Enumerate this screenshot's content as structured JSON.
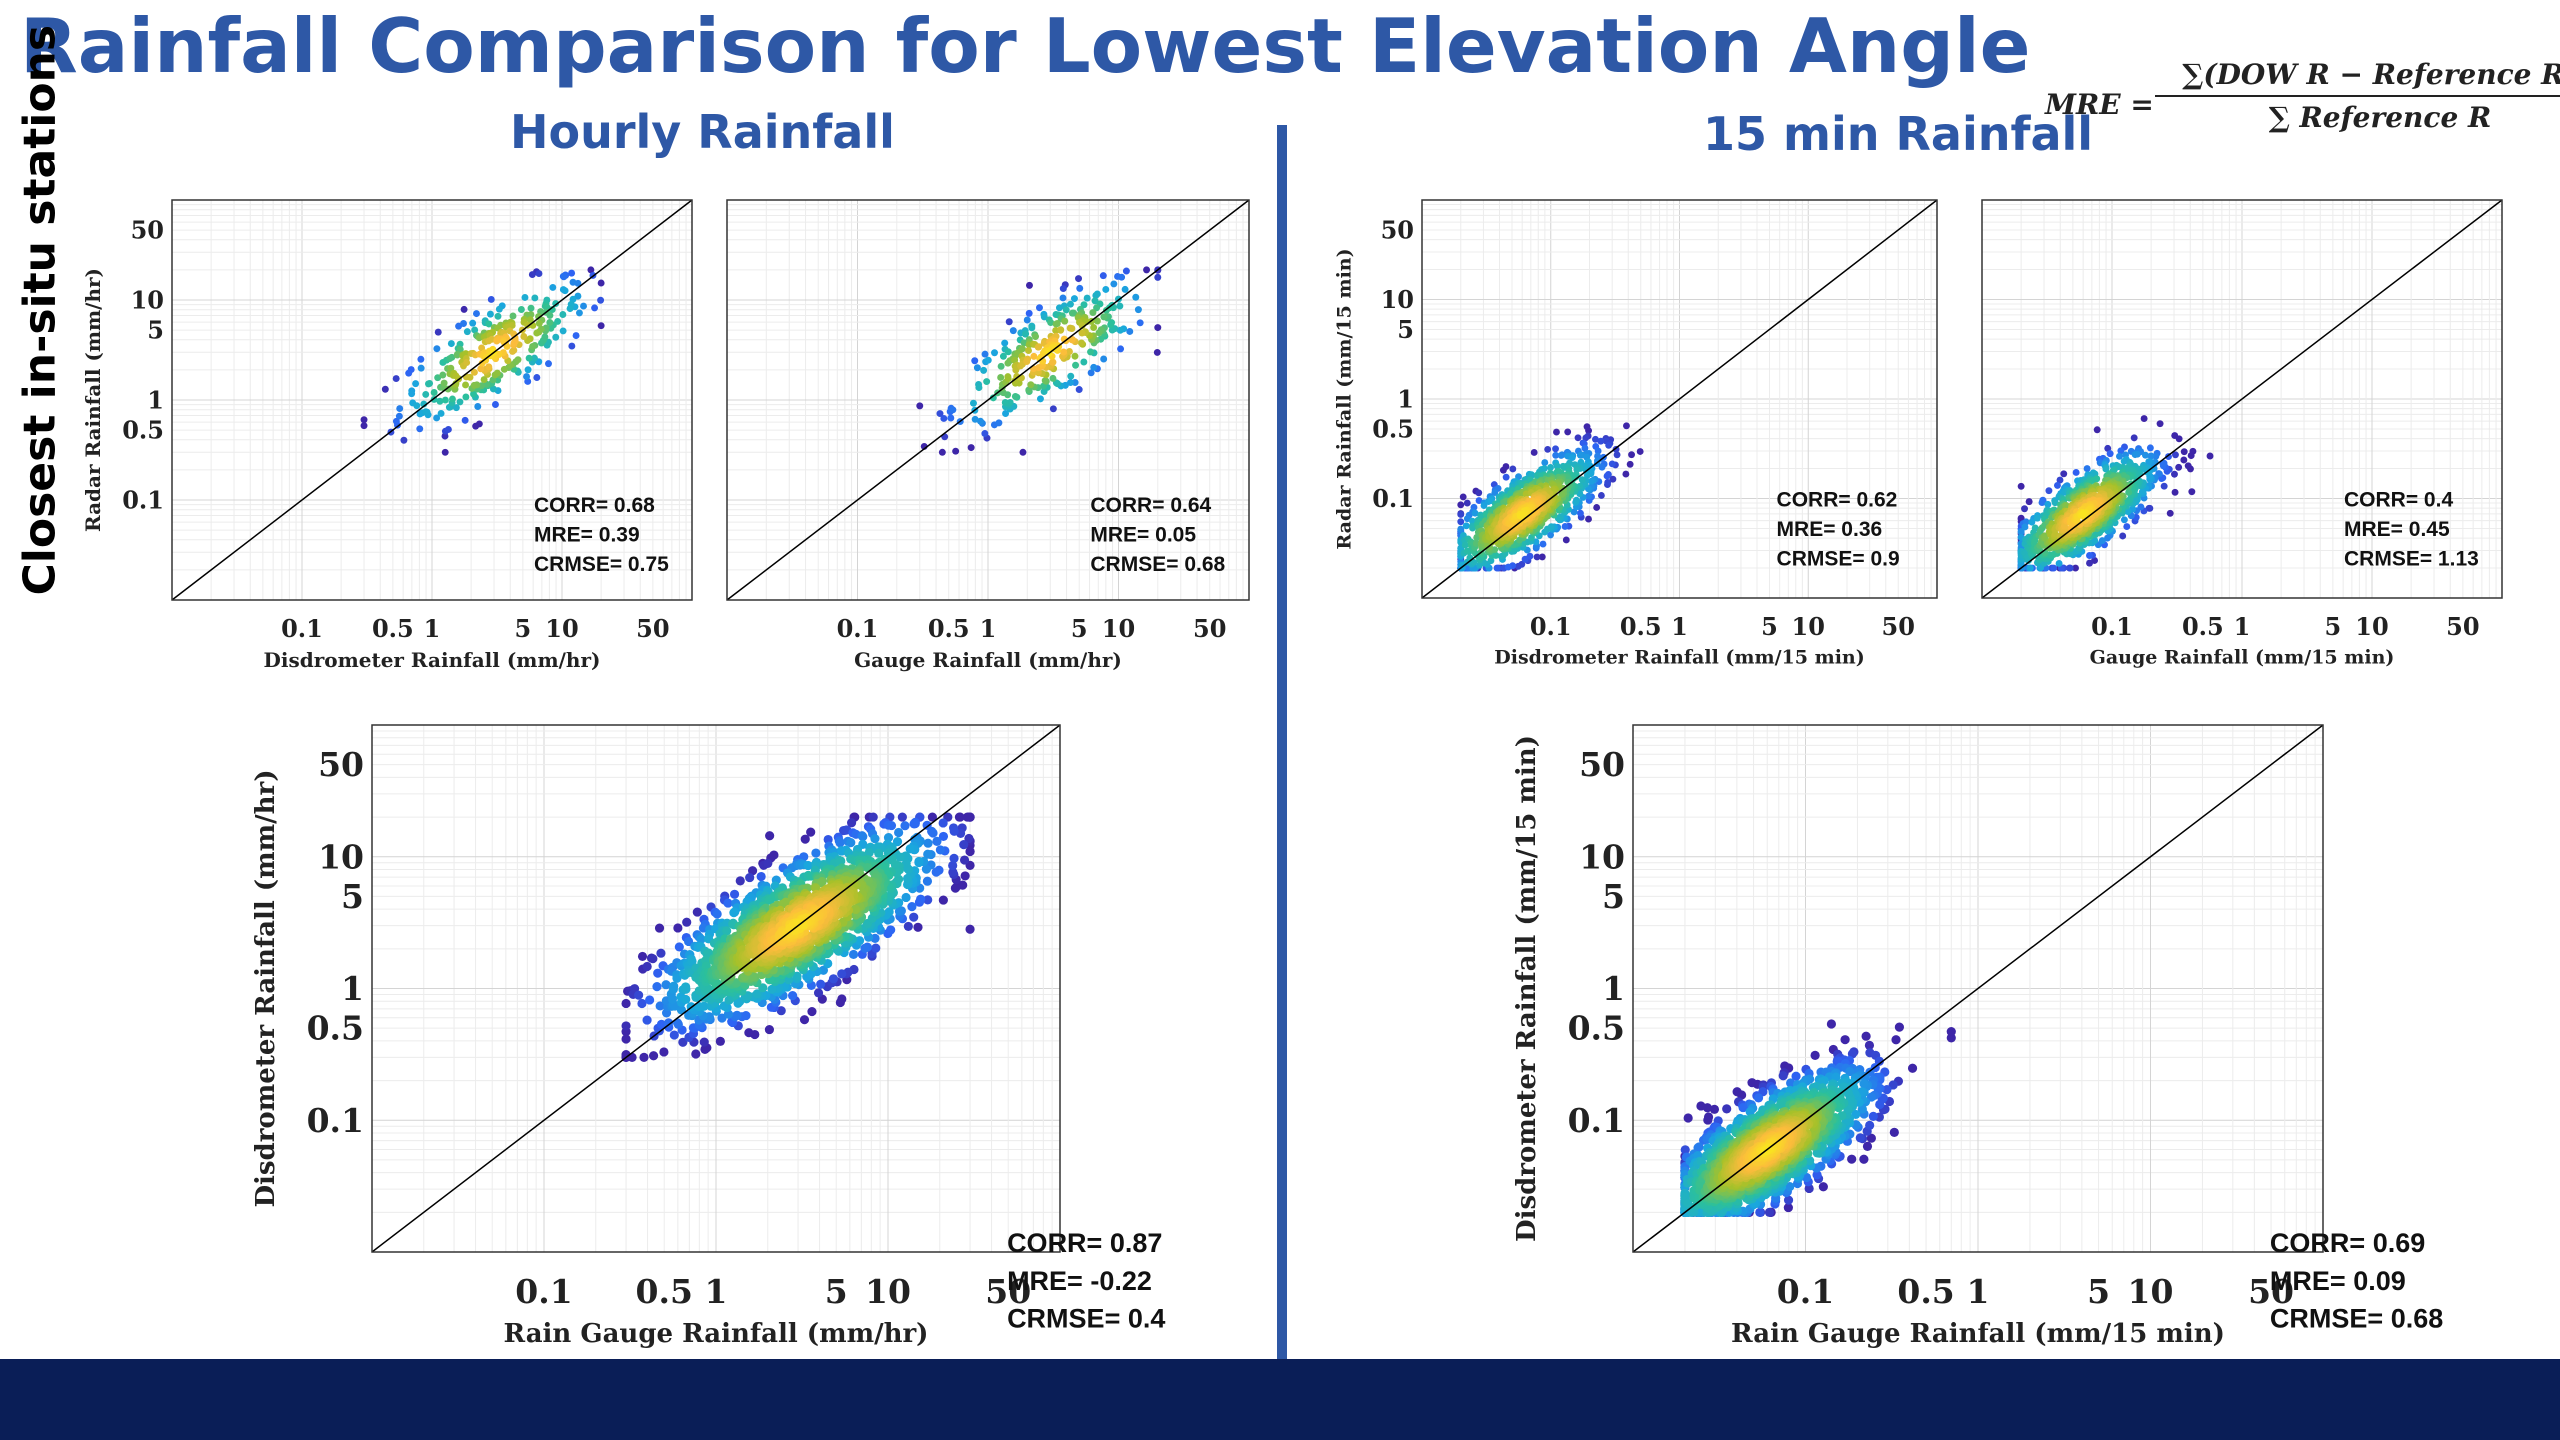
{
  "page": {
    "title": "Rainfall Comparison for Lowest Elevation Angle",
    "side_label": "Closest in-situ stations",
    "hourly_title": "Hourly Rainfall",
    "min15_title": "15 min Rainfall",
    "formula": {
      "lhs": "MRE =",
      "numerator": "∑(DOW R − Reference R)",
      "denominator": "∑ Reference R"
    }
  },
  "colors": {
    "title": "#2e58a6",
    "divider": "#2e58a6",
    "bottom_bar": "#0a1e57",
    "one_to_one_line": "#000000",
    "colormap": [
      "#3e26a8",
      "#2e63f4",
      "#1aa8dd",
      "#2cc09b",
      "#a6c12a",
      "#fbbc3c",
      "#f9e51f"
    ]
  },
  "chart_data": [
    {
      "type": "scatter",
      "id": "hourly-radar-vs-disdrometer",
      "xlabel": "Disdrometer Rainfall (mm/hr)",
      "ylabel": "Radar Rainfall (mm/hr)",
      "xscale": "log",
      "yscale": "log",
      "xlim": [
        0.01,
        100
      ],
      "ylim": [
        0.01,
        100
      ],
      "xticks": [
        "0.1",
        "0.5",
        "1",
        "5",
        "10",
        "50"
      ],
      "yticks": [
        "0.1",
        "0.5",
        "1",
        "5",
        "10",
        "50"
      ],
      "grid": true,
      "one_to_one_line": true,
      "color_by": "point density",
      "points_approx": {
        "count": 300,
        "x_median": 3,
        "y_median": 3,
        "x_range": [
          0.3,
          20
        ],
        "y_range": [
          0.3,
          20
        ]
      },
      "stats": {
        "corr": "CORR= 0.68",
        "mre": "MRE= 0.39",
        "crmse": "CRMSE= 0.75"
      }
    },
    {
      "type": "scatter",
      "id": "hourly-radar-vs-gauge",
      "xlabel": "Gauge Rainfall (mm/hr)",
      "ylabel": "",
      "xscale": "log",
      "yscale": "log",
      "xlim": [
        0.01,
        100
      ],
      "ylim": [
        0.01,
        100
      ],
      "xticks": [
        "0.1",
        "0.5",
        "1",
        "5",
        "10",
        "50"
      ],
      "yticks": [],
      "grid": true,
      "one_to_one_line": true,
      "color_by": "point density",
      "points_approx": {
        "count": 300,
        "x_median": 3,
        "y_median": 3,
        "x_range": [
          0.3,
          20
        ],
        "y_range": [
          0.3,
          20
        ]
      },
      "stats": {
        "corr": "CORR= 0.64",
        "mre": "MRE= 0.05",
        "crmse": "CRMSE= 0.68"
      }
    },
    {
      "type": "scatter",
      "id": "min15-radar-vs-disdrometer",
      "xlabel": "Disdrometer Rainfall (mm/15 min)",
      "ylabel": "Radar Rainfall (mm/15 min)",
      "xscale": "log",
      "yscale": "log",
      "xlim": [
        0.01,
        100
      ],
      "ylim": [
        0.01,
        100
      ],
      "xticks": [
        "0.1",
        "0.5",
        "1",
        "5",
        "10",
        "50"
      ],
      "yticks": [
        "0.1",
        "0.5",
        "1",
        "5",
        "10",
        "50"
      ],
      "grid": true,
      "one_to_one_line": true,
      "color_by": "point density",
      "points_approx": {
        "count": 900,
        "x_median": 0.06,
        "y_median": 0.07,
        "x_range": [
          0.02,
          0.7
        ],
        "y_range": [
          0.02,
          0.8
        ]
      },
      "stats": {
        "corr": "CORR= 0.62",
        "mre": "MRE= 0.36",
        "crmse": "CRMSE= 0.9"
      }
    },
    {
      "type": "scatter",
      "id": "min15-radar-vs-gauge",
      "xlabel": "Gauge Rainfall (mm/15 min)",
      "ylabel": "",
      "xscale": "log",
      "yscale": "log",
      "xlim": [
        0.01,
        100
      ],
      "ylim": [
        0.01,
        100
      ],
      "xticks": [
        "0.1",
        "0.5",
        "1",
        "5",
        "10",
        "50"
      ],
      "yticks": [],
      "grid": true,
      "one_to_one_line": true,
      "color_by": "point density",
      "points_approx": {
        "count": 900,
        "x_median": 0.06,
        "y_median": 0.07,
        "x_range": [
          0.02,
          0.6
        ],
        "y_range": [
          0.02,
          0.8
        ]
      },
      "stats": {
        "corr": "CORR= 0.4",
        "mre": "MRE= 0.45",
        "crmse": "CRMSE= 1.13"
      }
    },
    {
      "type": "scatter",
      "id": "hourly-disdrometer-vs-raingauge",
      "xlabel": "Rain Gauge Rainfall (mm/hr)",
      "ylabel": "Disdrometer Rainfall (mm/hr)",
      "xscale": "log",
      "yscale": "log",
      "xlim": [
        0.01,
        100
      ],
      "ylim": [
        0.01,
        100
      ],
      "xticks": [
        "0.1",
        "0.5",
        "1",
        "5",
        "10",
        "50"
      ],
      "yticks": [
        "0.1",
        "0.5",
        "1",
        "5",
        "10",
        "50"
      ],
      "grid": true,
      "one_to_one_line": true,
      "color_by": "point density",
      "points_approx": {
        "count": 1500,
        "x_median": 3,
        "y_median": 3,
        "x_range": [
          0.3,
          30
        ],
        "y_range": [
          0.3,
          20
        ]
      },
      "stats": {
        "corr": "CORR= 0.87",
        "mre": "MRE= -0.22",
        "crmse": "CRMSE= 0.4"
      }
    },
    {
      "type": "scatter",
      "id": "min15-disdrometer-vs-raingauge",
      "xlabel": "Rain Gauge Rainfall (mm/15 min)",
      "ylabel": "Disdrometer Rainfall (mm/15 min)",
      "xscale": "log",
      "yscale": "log",
      "xlim": [
        0.01,
        100
      ],
      "ylim": [
        0.01,
        100
      ],
      "xticks": [
        "0.1",
        "0.5",
        "1",
        "5",
        "10",
        "50"
      ],
      "yticks": [
        "0.1",
        "0.5",
        "1",
        "5",
        "10",
        "50"
      ],
      "grid": true,
      "one_to_one_line": true,
      "color_by": "point density",
      "points_approx": {
        "count": 1500,
        "x_median": 0.06,
        "y_median": 0.06,
        "x_range": [
          0.02,
          0.7
        ],
        "y_range": [
          0.02,
          0.7
        ]
      },
      "stats": {
        "corr": "CORR= 0.69",
        "mre": "MRE= 0.09",
        "crmse": "CRMSE= 0.68"
      }
    }
  ]
}
